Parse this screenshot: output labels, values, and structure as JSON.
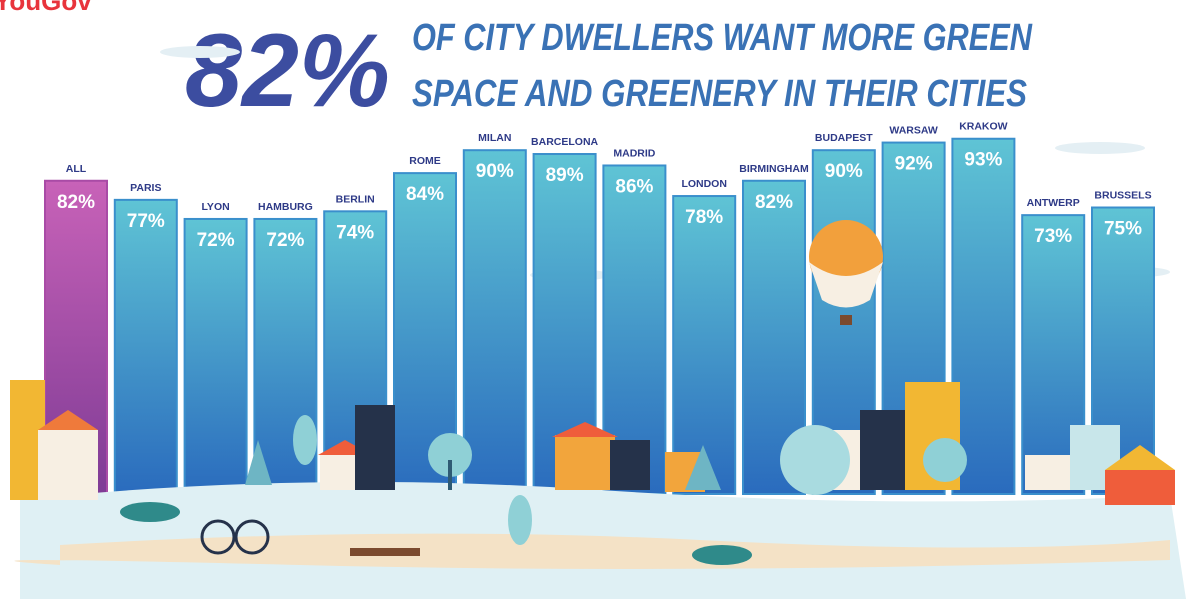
{
  "brand": "YouGov",
  "chart_data": {
    "type": "bar",
    "title": "82%",
    "subtitle": [
      "OF CITY DWELLERS WANT MORE GREEN",
      "SPACE AND GREENERY IN THEIR CITIES"
    ],
    "categories": [
      "ALL",
      "PARIS",
      "LYON",
      "HAMBURG",
      "BERLIN",
      "ROME",
      "MILAN",
      "BARCELONA",
      "MADRID",
      "LONDON",
      "BIRMINGHAM",
      "BUDAPEST",
      "WARSAW",
      "KRAKOW",
      "ANTWERP",
      "BRUSSELS"
    ],
    "values": [
      82,
      77,
      72,
      72,
      74,
      84,
      90,
      89,
      86,
      78,
      82,
      90,
      92,
      93,
      73,
      75
    ],
    "value_labels": [
      "82%",
      "77%",
      "72%",
      "72%",
      "74%",
      "84%",
      "90%",
      "89%",
      "86%",
      "78%",
      "82%",
      "90%",
      "92%",
      "93%",
      "73%",
      "75%"
    ],
    "colors": [
      "#a94ba6",
      "#3a8fcc",
      "#3a8fcc",
      "#3a8fcc",
      "#3a8fcc",
      "#3a8fcc",
      "#3a8fcc",
      "#3a8fcc",
      "#3a8fcc",
      "#3a8fcc",
      "#3a8fcc",
      "#3a8fcc",
      "#3a8fcc",
      "#3a8fcc",
      "#3a8fcc",
      "#3a8fcc"
    ],
    "ylim": [
      0,
      100
    ]
  }
}
